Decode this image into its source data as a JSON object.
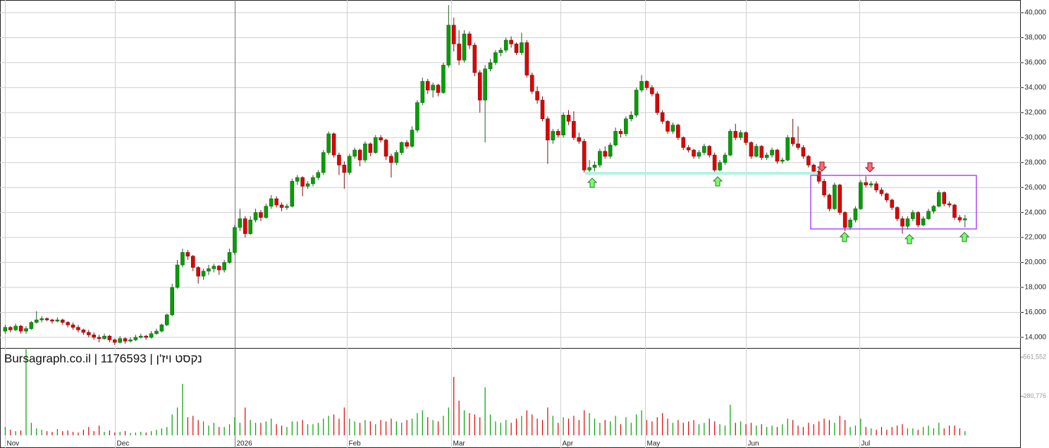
{
  "chart_data": {
    "type": "candlestick",
    "watermark": "Bursagraph.co.il | 1176593 | נקסט ויז'ן",
    "xlim": [
      -1,
      194.7
    ],
    "ylim": [
      13150,
      41015
    ],
    "yticks": [
      {
        "value": 40000,
        "label": "40,000"
      },
      {
        "value": 38000,
        "label": "38,000"
      },
      {
        "value": 36000,
        "label": "36,000"
      },
      {
        "value": 34000,
        "label": "34,000"
      },
      {
        "value": 32000,
        "label": "32,000"
      },
      {
        "value": 30000,
        "label": "30,000"
      },
      {
        "value": 28000,
        "label": "28,000"
      },
      {
        "value": 26000,
        "label": "26,000"
      },
      {
        "value": 24000,
        "label": "24,000"
      },
      {
        "value": 22000,
        "label": "22,000"
      },
      {
        "value": 20000,
        "label": "20,000"
      },
      {
        "value": 18000,
        "label": "18,000"
      },
      {
        "value": 16000,
        "label": "16,000"
      },
      {
        "value": 14000,
        "label": "14,000"
      }
    ],
    "xticks": [
      {
        "value": 0,
        "label": "Nov"
      },
      {
        "value": 21,
        "label": "Dec"
      },
      {
        "value": 44,
        "label": "2026"
      },
      {
        "value": 65.5,
        "label": "Feb"
      },
      {
        "value": 85.5,
        "label": "Mar"
      },
      {
        "value": 106.4,
        "label": "Apr"
      },
      {
        "value": 122.6,
        "label": "May"
      },
      {
        "value": 142,
        "label": "Jun"
      },
      {
        "value": 163.7,
        "label": "Jul"
      }
    ],
    "grid": true,
    "up_color": "#00a000",
    "down_color": "#e00000",
    "volume_ylim": [
      0,
      623000
    ],
    "volume_yticks": [
      {
        "value": 561552,
        "label": "561,552"
      },
      {
        "value": 280776,
        "label": "280,776"
      }
    ],
    "candles": [
      [
        14500,
        15000,
        14300,
        14800
      ],
      [
        14800,
        14900,
        14400,
        14600
      ],
      [
        14600,
        15100,
        14500,
        14900
      ],
      [
        14900,
        15000,
        14300,
        14500
      ],
      [
        14500,
        14900,
        14300,
        14700
      ],
      [
        14700,
        15300,
        14600,
        15200
      ],
      [
        15200,
        16100,
        15100,
        15400
      ],
      [
        15400,
        15700,
        15200,
        15500
      ],
      [
        15500,
        15600,
        15300,
        15400
      ],
      [
        15400,
        15500,
        15100,
        15300
      ],
      [
        15300,
        15600,
        15200,
        15400
      ],
      [
        15400,
        15500,
        15000,
        15200
      ],
      [
        15200,
        15300,
        14800,
        15000
      ],
      [
        15000,
        15200,
        14600,
        14800
      ],
      [
        14800,
        15000,
        14400,
        14600
      ],
      [
        14600,
        14700,
        14200,
        14400
      ],
      [
        14400,
        14600,
        14000,
        14200
      ],
      [
        14200,
        14400,
        13800,
        14000
      ],
      [
        14000,
        14200,
        13600,
        13900
      ],
      [
        13900,
        14300,
        13800,
        14100
      ],
      [
        14100,
        14200,
        13600,
        13800
      ],
      [
        13800,
        13900,
        13400,
        13600
      ],
      [
        13600,
        14100,
        13500,
        13900
      ],
      [
        13900,
        14000,
        13500,
        13700
      ],
      [
        13700,
        14000,
        13600,
        13800
      ],
      [
        13800,
        14200,
        13700,
        14000
      ],
      [
        14000,
        14300,
        13900,
        14100
      ],
      [
        14100,
        14200,
        13800,
        14000
      ],
      [
        14000,
        14500,
        13900,
        14300
      ],
      [
        14300,
        14700,
        14200,
        14500
      ],
      [
        14500,
        15100,
        14400,
        15000
      ],
      [
        15000,
        15900,
        14900,
        15800
      ],
      [
        15800,
        18300,
        15700,
        18000
      ],
      [
        18000,
        20200,
        17900,
        19800
      ],
      [
        19800,
        21100,
        19600,
        20800
      ],
      [
        20800,
        21000,
        20200,
        20500
      ],
      [
        20500,
        20600,
        19300,
        19600
      ],
      [
        19600,
        19700,
        18300,
        18900
      ],
      [
        18900,
        19500,
        18600,
        19300
      ],
      [
        19300,
        19800,
        19000,
        19500
      ],
      [
        19500,
        19900,
        19200,
        19700
      ],
      [
        19700,
        19800,
        19000,
        19400
      ],
      [
        19400,
        20200,
        19200,
        20000
      ],
      [
        20000,
        21100,
        19900,
        20800
      ],
      [
        20800,
        23000,
        20600,
        22800
      ],
      [
        22800,
        24300,
        22500,
        23500
      ],
      [
        23500,
        23700,
        22000,
        22300
      ],
      [
        22300,
        23700,
        22200,
        23400
      ],
      [
        23400,
        24300,
        23200,
        24000
      ],
      [
        24000,
        24200,
        23300,
        23600
      ],
      [
        23600,
        24700,
        23500,
        24500
      ],
      [
        24500,
        25400,
        24300,
        25100
      ],
      [
        25100,
        25300,
        24400,
        24600
      ],
      [
        24600,
        24800,
        24100,
        24400
      ],
      [
        24400,
        24700,
        24200,
        24500
      ],
      [
        24500,
        26700,
        24400,
        26500
      ],
      [
        26500,
        27000,
        26200,
        26800
      ],
      [
        26800,
        26900,
        25300,
        26100
      ],
      [
        26100,
        26500,
        25900,
        26300
      ],
      [
        26300,
        27000,
        26100,
        26800
      ],
      [
        26800,
        27400,
        26600,
        27200
      ],
      [
        27200,
        29000,
        27000,
        28800
      ],
      [
        28800,
        30500,
        28600,
        30300
      ],
      [
        30300,
        30400,
        28400,
        28600
      ],
      [
        28600,
        28800,
        27000,
        27800
      ],
      [
        27800,
        28100,
        25900,
        27200
      ],
      [
        27200,
        28700,
        27000,
        28500
      ],
      [
        28500,
        29200,
        28300,
        29000
      ],
      [
        29000,
        29100,
        27700,
        28200
      ],
      [
        28200,
        29700,
        28000,
        29500
      ],
      [
        29500,
        29600,
        28500,
        28800
      ],
      [
        28800,
        30200,
        28700,
        30000
      ],
      [
        30000,
        30200,
        29600,
        29800
      ],
      [
        29800,
        29900,
        28200,
        28500
      ],
      [
        28500,
        28700,
        26800,
        28000
      ],
      [
        28000,
        29000,
        27800,
        28800
      ],
      [
        28800,
        29700,
        28600,
        29600
      ],
      [
        29600,
        29800,
        29100,
        29300
      ],
      [
        29300,
        30900,
        29200,
        30600
      ],
      [
        30600,
        33000,
        30400,
        32800
      ],
      [
        32800,
        34800,
        32600,
        34500
      ],
      [
        34500,
        34700,
        33500,
        33800
      ],
      [
        33800,
        34400,
        33200,
        34200
      ],
      [
        34200,
        34300,
        33300,
        33600
      ],
      [
        33600,
        36000,
        33500,
        35800
      ],
      [
        35800,
        40600,
        35600,
        39000
      ],
      [
        39000,
        39600,
        36900,
        37500
      ],
      [
        37500,
        38600,
        35800,
        36200
      ],
      [
        36200,
        38600,
        36000,
        38300
      ],
      [
        38300,
        38500,
        37100,
        37400
      ],
      [
        37400,
        37600,
        34900,
        35200
      ],
      [
        35200,
        35400,
        32000,
        33000
      ],
      [
        33000,
        35800,
        29600,
        35500
      ],
      [
        35500,
        36300,
        35300,
        36000
      ],
      [
        36000,
        37000,
        35800,
        36800
      ],
      [
        36800,
        37200,
        36500,
        37000
      ],
      [
        37000,
        38000,
        36800,
        37800
      ],
      [
        37800,
        38100,
        37200,
        37500
      ],
      [
        37500,
        37600,
        36600,
        36800
      ],
      [
        36800,
        38400,
        36600,
        37600
      ],
      [
        37600,
        37800,
        34800,
        35000
      ],
      [
        35000,
        35200,
        33500,
        33700
      ],
      [
        33700,
        34100,
        32700,
        33000
      ],
      [
        33000,
        33300,
        31300,
        31500
      ],
      [
        31500,
        31700,
        27900,
        29800
      ],
      [
        29800,
        30700,
        29500,
        30500
      ],
      [
        30500,
        30700,
        30000,
        30200
      ],
      [
        30200,
        32000,
        30000,
        31800
      ],
      [
        31800,
        32200,
        31000,
        31300
      ],
      [
        31300,
        32100,
        29800,
        30000
      ],
      [
        30000,
        30400,
        29500,
        29700
      ],
      [
        29700,
        29900,
        27200,
        27400
      ],
      [
        27400,
        28200,
        27000,
        27600
      ],
      [
        27600,
        28100,
        27300,
        27800
      ],
      [
        27800,
        29100,
        27600,
        28900
      ],
      [
        28900,
        29300,
        28300,
        28500
      ],
      [
        28500,
        29600,
        28300,
        29400
      ],
      [
        29400,
        30800,
        29300,
        30500
      ],
      [
        30500,
        30700,
        30000,
        30300
      ],
      [
        30300,
        31700,
        30100,
        31500
      ],
      [
        31500,
        32100,
        31300,
        31800
      ],
      [
        31800,
        34000,
        31600,
        33800
      ],
      [
        33800,
        35000,
        33600,
        34500
      ],
      [
        34500,
        34600,
        33800,
        34000
      ],
      [
        34000,
        34200,
        33300,
        33500
      ],
      [
        33500,
        33700,
        31800,
        32000
      ],
      [
        32000,
        32200,
        31100,
        31300
      ],
      [
        31300,
        31400,
        30300,
        30500
      ],
      [
        30500,
        31200,
        30300,
        31000
      ],
      [
        31000,
        31100,
        29800,
        30000
      ],
      [
        30000,
        30100,
        29000,
        29200
      ],
      [
        29200,
        29400,
        28800,
        29000
      ],
      [
        29000,
        29100,
        28300,
        28500
      ],
      [
        28500,
        29000,
        28300,
        28800
      ],
      [
        28800,
        29500,
        28600,
        29300
      ],
      [
        29300,
        29400,
        28400,
        28600
      ],
      [
        28600,
        28800,
        27200,
        27400
      ],
      [
        27400,
        28200,
        27300,
        28000
      ],
      [
        28000,
        28800,
        27800,
        28600
      ],
      [
        28600,
        30700,
        28500,
        30500
      ],
      [
        30500,
        31100,
        29800,
        30000
      ],
      [
        30000,
        30600,
        29800,
        30400
      ],
      [
        30400,
        30500,
        29400,
        29600
      ],
      [
        29600,
        29700,
        28300,
        28500
      ],
      [
        28500,
        29500,
        28400,
        29300
      ],
      [
        29300,
        29400,
        28200,
        28400
      ],
      [
        28400,
        28800,
        28200,
        28600
      ],
      [
        28600,
        29200,
        28400,
        29000
      ],
      [
        29000,
        29100,
        27900,
        28100
      ],
      [
        28100,
        28400,
        27900,
        28200
      ],
      [
        28200,
        30200,
        28100,
        30000
      ],
      [
        30000,
        31500,
        29300,
        29500
      ],
      [
        29500,
        30900,
        29000,
        29200
      ],
      [
        29200,
        29400,
        28300,
        28500
      ],
      [
        28500,
        28600,
        27600,
        27800
      ],
      [
        27800,
        27900,
        27100,
        27300
      ],
      [
        27300,
        27500,
        26300,
        26500
      ],
      [
        26500,
        26700,
        25200,
        25400
      ],
      [
        25400,
        25500,
        24100,
        24300
      ],
      [
        24300,
        26400,
        24200,
        26200
      ],
      [
        26200,
        26300,
        23800,
        24000
      ],
      [
        24000,
        24100,
        22500,
        22800
      ],
      [
        22800,
        23600,
        22600,
        23400
      ],
      [
        23400,
        24500,
        23200,
        24300
      ],
      [
        24300,
        26600,
        24200,
        26400
      ],
      [
        26400,
        26900,
        26000,
        26200
      ],
      [
        26200,
        26500,
        26000,
        26300
      ],
      [
        26300,
        26500,
        25600,
        25800
      ],
      [
        25800,
        26000,
        25300,
        25500
      ],
      [
        25500,
        25600,
        24800,
        25000
      ],
      [
        25000,
        25100,
        24200,
        24400
      ],
      [
        24400,
        24500,
        23300,
        23500
      ],
      [
        23500,
        23700,
        22300,
        22900
      ],
      [
        22900,
        23700,
        22700,
        23500
      ],
      [
        23500,
        24200,
        23300,
        24000
      ],
      [
        24000,
        24100,
        22800,
        23000
      ],
      [
        23000,
        23700,
        22900,
        23500
      ],
      [
        23500,
        24300,
        23400,
        24100
      ],
      [
        24100,
        24600,
        23900,
        24500
      ],
      [
        24500,
        25800,
        24400,
        25600
      ],
      [
        25600,
        25700,
        24500,
        24700
      ],
      [
        24700,
        24900,
        24400,
        24600
      ],
      [
        24600,
        24700,
        23400,
        23600
      ],
      [
        23600,
        23800,
        23200,
        23400
      ],
      [
        23400,
        23800,
        22800,
        23500
      ]
    ],
    "volume": [
      60000,
      40000,
      30000,
      35000,
      620000,
      90000,
      50000,
      40000,
      30000,
      25000,
      45000,
      30000,
      35000,
      25000,
      20000,
      40000,
      60000,
      30000,
      70000,
      25000,
      35000,
      20000,
      25000,
      30000,
      15000,
      20000,
      25000,
      20000,
      30000,
      40000,
      50000,
      60000,
      150000,
      200000,
      370000,
      130000,
      140000,
      110000,
      100000,
      70000,
      90000,
      60000,
      60000,
      80000,
      130000,
      90000,
      200000,
      110000,
      90000,
      90000,
      100000,
      120000,
      80000,
      70000,
      60000,
      100000,
      100000,
      110000,
      80000,
      80000,
      90000,
      120000,
      140000,
      150000,
      120000,
      200000,
      120000,
      100000,
      90000,
      110000,
      100000,
      80000,
      110000,
      100000,
      120000,
      100000,
      90000,
      110000,
      120000,
      160000,
      180000,
      130000,
      110000,
      100000,
      140000,
      200000,
      420000,
      250000,
      180000,
      160000,
      150000,
      130000,
      345000,
      150000,
      100000,
      90000,
      110000,
      90000,
      120000,
      140000,
      180000,
      150000,
      120000,
      110000,
      200000,
      140000,
      90000,
      130000,
      120000,
      140000,
      110000,
      180000,
      160000,
      120000,
      90000,
      110000,
      100000,
      140000,
      80000,
      130000,
      90000,
      150000,
      180000,
      110000,
      100000,
      130000,
      160000,
      120000,
      90000,
      110000,
      90000,
      100000,
      110000,
      80000,
      90000,
      120000,
      100000,
      80000,
      70000,
      220000,
      90000,
      100000,
      80000,
      90000,
      70000,
      80000,
      60000,
      70000,
      60000,
      80000,
      120000,
      110000,
      70000,
      60000,
      90000,
      80000,
      100000,
      120000,
      110000,
      90000,
      140000,
      110000,
      60000,
      70000,
      120000,
      60000,
      50000,
      40000,
      60000,
      40000,
      60000,
      70000,
      80000,
      50000,
      50000,
      40000,
      60000,
      70000,
      50000,
      90000,
      50000,
      70000,
      70000,
      50000,
      30000
    ]
  }
}
